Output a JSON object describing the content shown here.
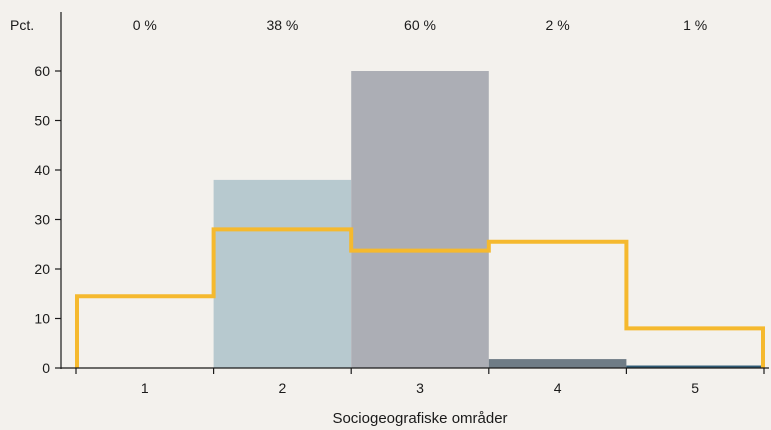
{
  "chart_data": {
    "type": "bar",
    "xlabel": "Sociogeografiske områder",
    "ylabel": "Pct.",
    "ylim": [
      0,
      70
    ],
    "yticks": [
      "0",
      "10",
      "20",
      "30",
      "40",
      "50",
      "60"
    ],
    "categories": [
      "1",
      "2",
      "3",
      "4",
      "5"
    ],
    "top_labels": [
      "0 %",
      "38 %",
      "60 %",
      "2 %",
      "1 %"
    ],
    "series": [
      {
        "type": "bar",
        "values": [
          0,
          38,
          60,
          1.8,
          0.5
        ],
        "colors": [
          "#b7c9cf",
          "#b7c9cf",
          "#acaeb5",
          "#6f7c86",
          "#2e5a74"
        ]
      },
      {
        "type": "step",
        "values": [
          14.5,
          28,
          23.7,
          25.5,
          8
        ],
        "color": "#f5b92e"
      }
    ],
    "grid": false,
    "legend": "none"
  }
}
